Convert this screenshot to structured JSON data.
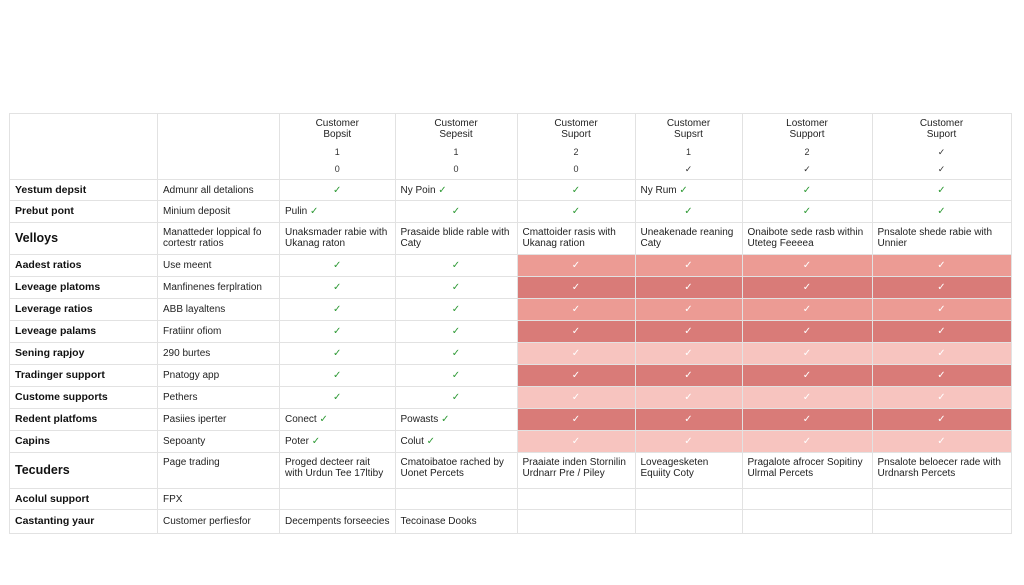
{
  "columns": [
    {
      "header": [
        "Customer",
        "Bopsit"
      ],
      "n1": "1",
      "n2": "0"
    },
    {
      "header": [
        "Customer",
        "Sepesit"
      ],
      "n1": "1",
      "n2": "0"
    },
    {
      "header": [
        "Customer",
        "Suport"
      ],
      "n1": "2",
      "n2": "0"
    },
    {
      "header": [
        "Customer",
        "Supsrt"
      ],
      "n1": "1",
      "n2": "✓"
    },
    {
      "header": [
        "Lostomer",
        "Support"
      ],
      "n1": "2",
      "n2": "✓"
    },
    {
      "header": [
        "Customer",
        "Suport"
      ],
      "n1": "✓",
      "n2": "✓"
    }
  ],
  "rows": [
    {
      "label": "Yestum depsit",
      "sub": "Admunr all detalions",
      "cells": [
        "✓",
        "Ny Poin ✓",
        "✓",
        "Ny Rum ✓",
        "✓",
        "✓"
      ],
      "hl": []
    },
    {
      "label": "Prebut pont",
      "sub": "Minium deposit",
      "cells": [
        "Pulin ✓",
        "✓",
        "✓",
        "✓",
        "✓",
        "✓"
      ],
      "hl": []
    },
    {
      "label": "Velloys",
      "big": true,
      "wrap": true,
      "sub": "Manatteder loppical fo cortestr ratios",
      "cells": [
        "Unaksmader rabie with Ukanag raton",
        "Prasaide blide rable with Caty",
        "Cmattoider rasis with Ukanag ration",
        "Uneakenade reaning Caty",
        "Onaibote sede rasb within Uteteg Feeeea",
        "Pnsalote shede rabie with Unnier"
      ],
      "hl": []
    },
    {
      "label": "Aadest ratios",
      "sub": "Use meent",
      "cells": [
        "✓",
        "✓",
        "✓",
        "✓",
        "✓",
        "✓"
      ],
      "hl": [
        "",
        "",
        "mid",
        "mid",
        "mid",
        "mid"
      ]
    },
    {
      "label": "Leveage platoms",
      "sub": "Manfinenes ferplration",
      "cells": [
        "✓",
        "✓",
        "✓",
        "✓",
        "✓",
        "✓"
      ],
      "hl": [
        "",
        "",
        "dark",
        "dark",
        "dark",
        "dark"
      ]
    },
    {
      "label": "Leverage ratios",
      "sub": "ABB layaltens",
      "cells": [
        "✓",
        "✓",
        "✓",
        "✓",
        "✓",
        "✓"
      ],
      "hl": [
        "",
        "",
        "mid",
        "mid",
        "mid",
        "mid"
      ]
    },
    {
      "label": "Leveage palams",
      "sub": "Fratiinr ofiom",
      "cells": [
        "✓",
        "✓",
        "✓",
        "✓",
        "✓",
        "✓"
      ],
      "hl": [
        "",
        "",
        "dark",
        "dark",
        "dark",
        "dark"
      ]
    },
    {
      "label": "Sening rapjoy",
      "sub": "290 burtes",
      "cells": [
        "✓",
        "✓",
        "✓",
        "✓",
        "✓",
        "✓"
      ],
      "hl": [
        "",
        "",
        "light",
        "light",
        "light",
        "light"
      ]
    },
    {
      "label": "Tradinger support",
      "sub": "Pnatogy app",
      "cells": [
        "✓",
        "✓",
        "✓",
        "✓",
        "✓",
        "✓"
      ],
      "hl": [
        "",
        "",
        "dark",
        "dark",
        "dark",
        "dark"
      ]
    },
    {
      "label": "Custome supports",
      "sub": "Pethers",
      "cells": [
        "✓",
        "✓",
        "✓",
        "✓",
        "✓",
        "✓"
      ],
      "hl": [
        "",
        "",
        "light",
        "light",
        "light",
        "light"
      ]
    },
    {
      "label": "Redent platfoms",
      "sub": "Pasiies iperter",
      "cells": [
        "Conect ✓",
        "Powasts ✓",
        "✓",
        "✓",
        "✓",
        "✓"
      ],
      "hl": [
        "",
        "",
        "dark",
        "dark",
        "dark",
        "dark"
      ]
    },
    {
      "label": "Capins",
      "sub": "Sepoanty",
      "cells": [
        "Poter ✓",
        "Colut ✓",
        "✓",
        "✓",
        "✓",
        "✓"
      ],
      "hl": [
        "",
        "",
        "light",
        "light",
        "light",
        "light"
      ]
    },
    {
      "label": "Tecuders",
      "big": true,
      "wrap": true,
      "sub": "Page trading",
      "cells": [
        "Proged decteer rait with Urdun Tee 17ltiby",
        "Cmatoibatoe rached by Uonet Percets",
        "Praaiate inden Stornilin Urdnarr Pre / Piley",
        "Loveagesketen Equiity Coty",
        "Pragalote afrocer Sopitiny Ulrmal Percets",
        "Pnsalote beloecer rade with Urdnarsh Percets"
      ],
      "hl": []
    },
    {
      "label": "Acolul support",
      "sub": "FPX",
      "cells": [
        "",
        "",
        "",
        "",
        "",
        ""
      ],
      "hl": []
    },
    {
      "label": "Castanting yaur",
      "sub": "Customer perfiesfor",
      "cells": [
        "Decempents forseecies",
        "Tecoinase Dooks",
        "",
        "",
        "",
        ""
      ],
      "hl": []
    }
  ]
}
